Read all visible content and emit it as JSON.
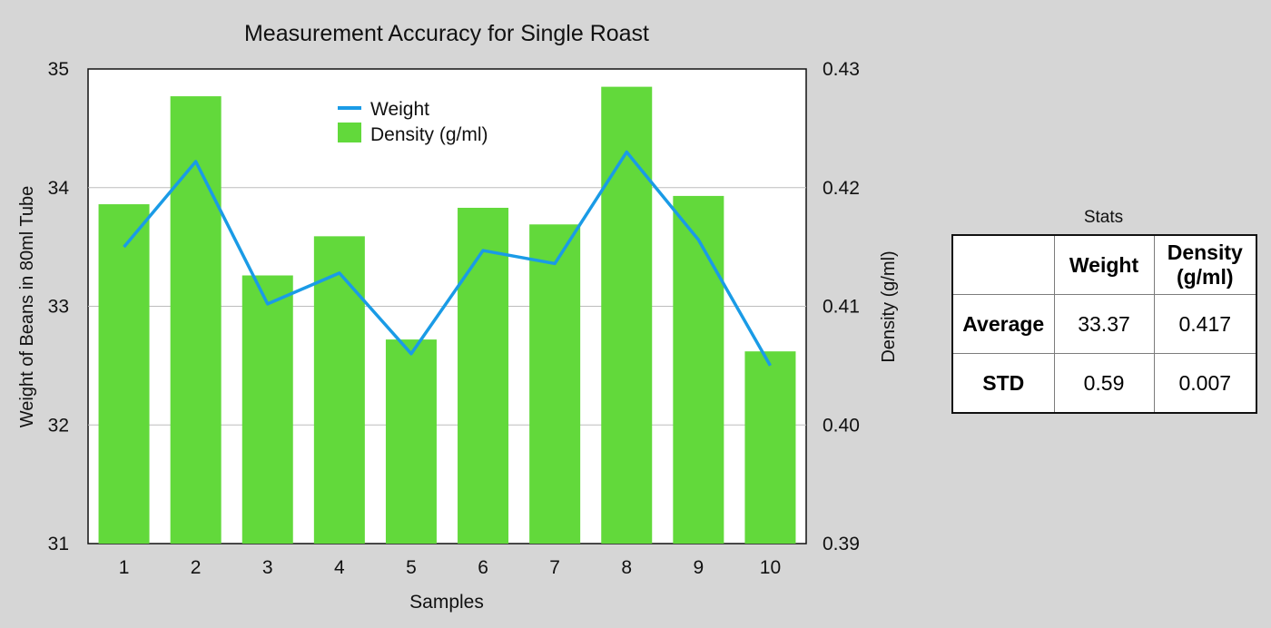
{
  "chart_data": {
    "type": "bar",
    "title": "Measurement Accuracy for Single Roast",
    "xlabel": "Samples",
    "ylabel": "Weight of Beans in 80ml Tube",
    "y2label": "Density (g/ml)",
    "categories": [
      "1",
      "2",
      "3",
      "4",
      "5",
      "6",
      "7",
      "8",
      "9",
      "10"
    ],
    "ylim": [
      31,
      35
    ],
    "y2lim": [
      0.39,
      0.43
    ],
    "yticks": [
      "31",
      "32",
      "33",
      "34",
      "35"
    ],
    "y2ticks": [
      "0.39",
      "0.40",
      "0.41",
      "0.42",
      "0.43"
    ],
    "grid": true,
    "legend_position": "top-center",
    "series": [
      {
        "name": "Weight",
        "type": "line",
        "axis": "left",
        "color": "#1a9be6",
        "values": [
          33.5,
          34.22,
          33.02,
          33.28,
          32.6,
          33.47,
          33.36,
          34.3,
          33.56,
          32.5
        ]
      },
      {
        "name": "Density (g/ml)",
        "type": "bar",
        "axis": "right",
        "color": "#62d93b",
        "values": [
          0.4186,
          0.4277,
          0.4126,
          0.4159,
          0.4072,
          0.4183,
          0.4169,
          0.4285,
          0.4193,
          0.4062
        ]
      }
    ]
  },
  "stats": {
    "caption": "Stats",
    "columns": [
      "",
      "Weight",
      "Density (g/ml)"
    ],
    "rows": [
      {
        "label": "Average",
        "weight": "33.37",
        "density": "0.417"
      },
      {
        "label": "STD",
        "weight": "0.59",
        "density": "0.007"
      }
    ]
  }
}
